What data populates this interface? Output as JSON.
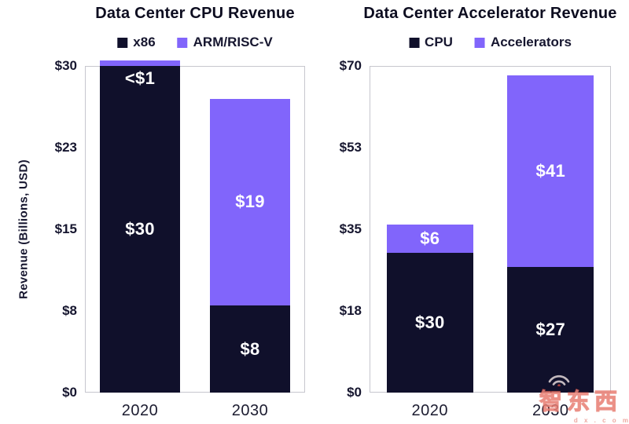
{
  "page": {
    "background": "#ffffff"
  },
  "colors": {
    "dark": "#10102b",
    "purple": "#8165fb",
    "title_text": "#0d0d20",
    "axis_text": "#16162f",
    "frame": "#c7c7ce",
    "bar_label_text": "#ffffff"
  },
  "watermark": {
    "icon": "wifi-arcs-icon",
    "text": "智东西",
    "subtext": "d x . c o m"
  },
  "chart_data": [
    {
      "type": "bar",
      "stacked": true,
      "title": "Data Center CPU Revenue",
      "ylabel": "Revenue (Billions, USD)",
      "xlabel": "",
      "ylim": [
        0,
        30
      ],
      "grid": false,
      "legend_position": "top",
      "yticks": [
        {
          "v": 30,
          "label": "$30"
        },
        {
          "v": 22.5,
          "label": "$23"
        },
        {
          "v": 15,
          "label": "$15"
        },
        {
          "v": 7.5,
          "label": "$8"
        },
        {
          "v": 0,
          "label": "$0"
        }
      ],
      "categories": [
        "2020",
        "2030"
      ],
      "series": [
        {
          "name": "x86",
          "color_key": "dark",
          "values": [
            30,
            8
          ],
          "value_labels": [
            "$30",
            "$8"
          ]
        },
        {
          "name": "ARM/RISC-V",
          "color_key": "purple",
          "values": [
            0.5,
            19
          ],
          "value_labels": [
            "<$1",
            "$19"
          ]
        }
      ]
    },
    {
      "type": "bar",
      "stacked": true,
      "title": "Data Center Accelerator Revenue",
      "ylabel": "",
      "xlabel": "",
      "ylim": [
        0,
        70
      ],
      "grid": false,
      "legend_position": "top",
      "yticks": [
        {
          "v": 70,
          "label": "$70"
        },
        {
          "v": 52.5,
          "label": "$53"
        },
        {
          "v": 35,
          "label": "$35"
        },
        {
          "v": 17.5,
          "label": "$18"
        },
        {
          "v": 0,
          "label": "$0"
        }
      ],
      "categories": [
        "2020",
        "2030"
      ],
      "series": [
        {
          "name": "CPU",
          "color_key": "dark",
          "values": [
            30,
            27
          ],
          "value_labels": [
            "$30",
            "$27"
          ]
        },
        {
          "name": "Accelerators",
          "color_key": "purple",
          "values": [
            6,
            41
          ],
          "value_labels": [
            "$6",
            "$41"
          ]
        }
      ]
    }
  ]
}
